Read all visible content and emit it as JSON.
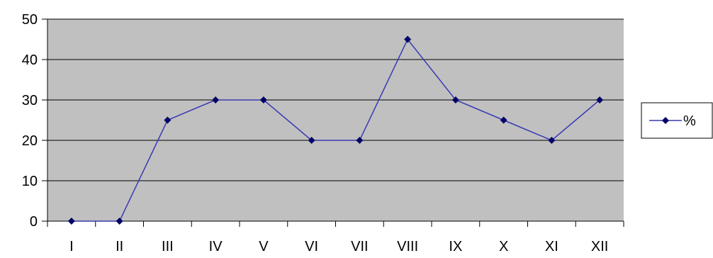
{
  "chart_data": {
    "type": "line",
    "categories": [
      "I",
      "II",
      "III",
      "IV",
      "V",
      "VI",
      "VII",
      "VIII",
      "IX",
      "X",
      "XI",
      "XII"
    ],
    "series": [
      {
        "name": "%",
        "values": [
          0,
          0,
          25,
          30,
          30,
          20,
          20,
          45,
          30,
          25,
          20,
          30
        ]
      }
    ],
    "y_ticks": [
      "0",
      "10",
      "20",
      "30",
      "40",
      "50"
    ],
    "ylim": [
      0,
      50
    ],
    "grid": true,
    "legend_position": "right",
    "colors": {
      "plot_background": "#c0c0c0",
      "series_line": "#3a3ab4",
      "series_marker": "#000066",
      "gridline": "#000000"
    }
  }
}
